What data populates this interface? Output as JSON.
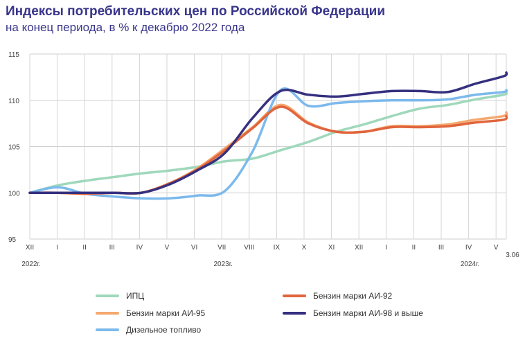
{
  "title": "Индексы потребительских цен по Российской Федерации",
  "subtitle": "на конец периода, в % к декабрю 2022 года",
  "chart_data": {
    "type": "line",
    "x_tick_labels": [
      "XII",
      "I",
      "II",
      "III",
      "IV",
      "V",
      "VI",
      "VII",
      "VIII",
      "IX",
      "X",
      "XI",
      "XII",
      "I",
      "II",
      "III",
      "IV",
      "V"
    ],
    "x_end_label": "3.06",
    "year_labels": [
      {
        "label": "2022г.",
        "month_index": 0
      },
      {
        "label": "2023г.",
        "month_index": 7
      },
      {
        "label": "2024г.",
        "month_index": 16
      }
    ],
    "x": [
      0,
      1,
      2,
      3,
      4,
      5,
      6,
      7,
      8,
      9,
      10,
      11,
      12,
      13,
      14,
      15,
      16,
      17,
      17.1
    ],
    "ylim": [
      95,
      115
    ],
    "y_ticks": [
      95,
      100,
      105,
      110,
      115
    ],
    "grid": true,
    "legend_position": "bottom",
    "series": [
      {
        "name": "ИПЦ",
        "color": "#9fd8bb",
        "values": [
          100,
          100.8,
          101.3,
          101.7,
          102.1,
          102.4,
          102.8,
          103.4,
          103.7,
          104.6,
          105.5,
          106.6,
          107.4,
          108.3,
          109.1,
          109.5,
          110.1,
          110.6,
          110.8
        ]
      },
      {
        "name": "Бензин марки АИ-95",
        "color": "#f5a86f",
        "values": [
          100,
          100,
          99.9,
          100,
          100,
          101,
          102.6,
          104.8,
          107.1,
          109.5,
          107.6,
          106.6,
          106.6,
          107.2,
          107.2,
          107.4,
          107.9,
          108.3,
          108.7
        ]
      },
      {
        "name": "Дизельное топливо",
        "color": "#7cb9ec",
        "values": [
          100,
          100.6,
          99.9,
          99.6,
          99.4,
          99.4,
          99.7,
          100.2,
          104.5,
          111.1,
          109.4,
          109.7,
          109.9,
          110,
          110,
          110.1,
          110.6,
          110.9,
          111.1
        ]
      },
      {
        "name": "Бензин марки АИ-92",
        "color": "#e0653d",
        "values": [
          100,
          100,
          99.9,
          100,
          100,
          101,
          102.5,
          104.6,
          107,
          109.3,
          107.5,
          106.6,
          106.6,
          107.1,
          107.1,
          107.2,
          107.6,
          107.9,
          108.3
        ]
      },
      {
        "name": "Бензин марки АИ-98 и выше",
        "color": "#35307f",
        "values": [
          100,
          100,
          100,
          100,
          100,
          100.9,
          102.4,
          104.3,
          108.1,
          111,
          110.6,
          110.4,
          110.7,
          111,
          111,
          110.9,
          111.8,
          112.6,
          113
        ]
      }
    ]
  }
}
